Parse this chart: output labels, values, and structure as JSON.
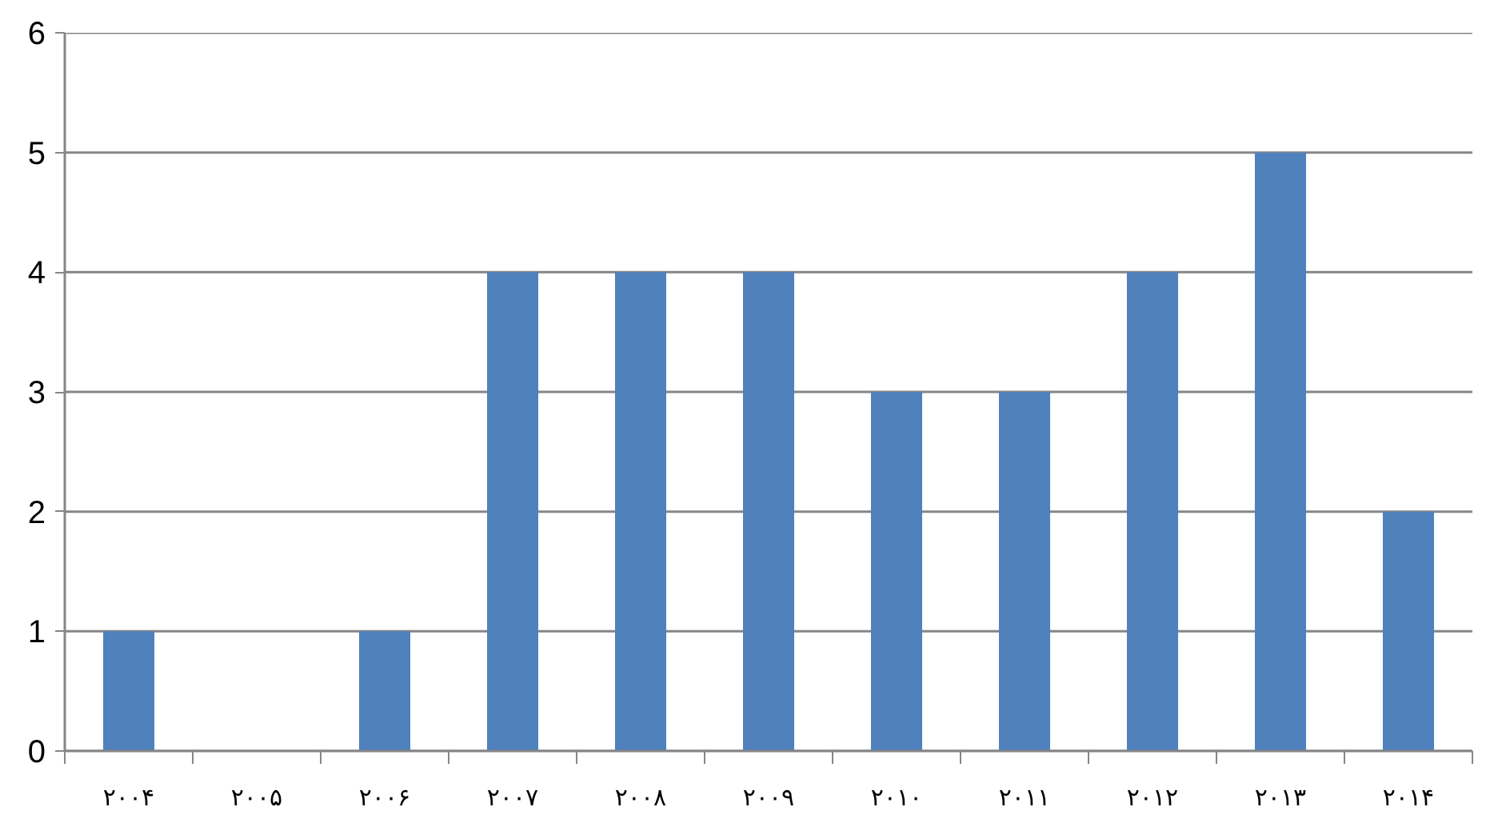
{
  "chart_data": {
    "type": "bar",
    "categories": [
      "۲۰۰۴",
      "۲۰۰۵",
      "۲۰۰۶",
      "۲۰۰۷",
      "۲۰۰۸",
      "۲۰۰۹",
      "۲۰۱۰",
      "۲۰۱۱",
      "۲۰۱۲",
      "۲۰۱۳",
      "۲۰۱۴"
    ],
    "values": [
      1,
      0,
      1,
      4,
      4,
      4,
      3,
      3,
      4,
      5,
      2
    ],
    "color": "#4f81bd",
    "ylim": [
      0,
      6
    ],
    "yticks": [
      0,
      1,
      2,
      3,
      4,
      5,
      6
    ],
    "grid": "y"
  }
}
